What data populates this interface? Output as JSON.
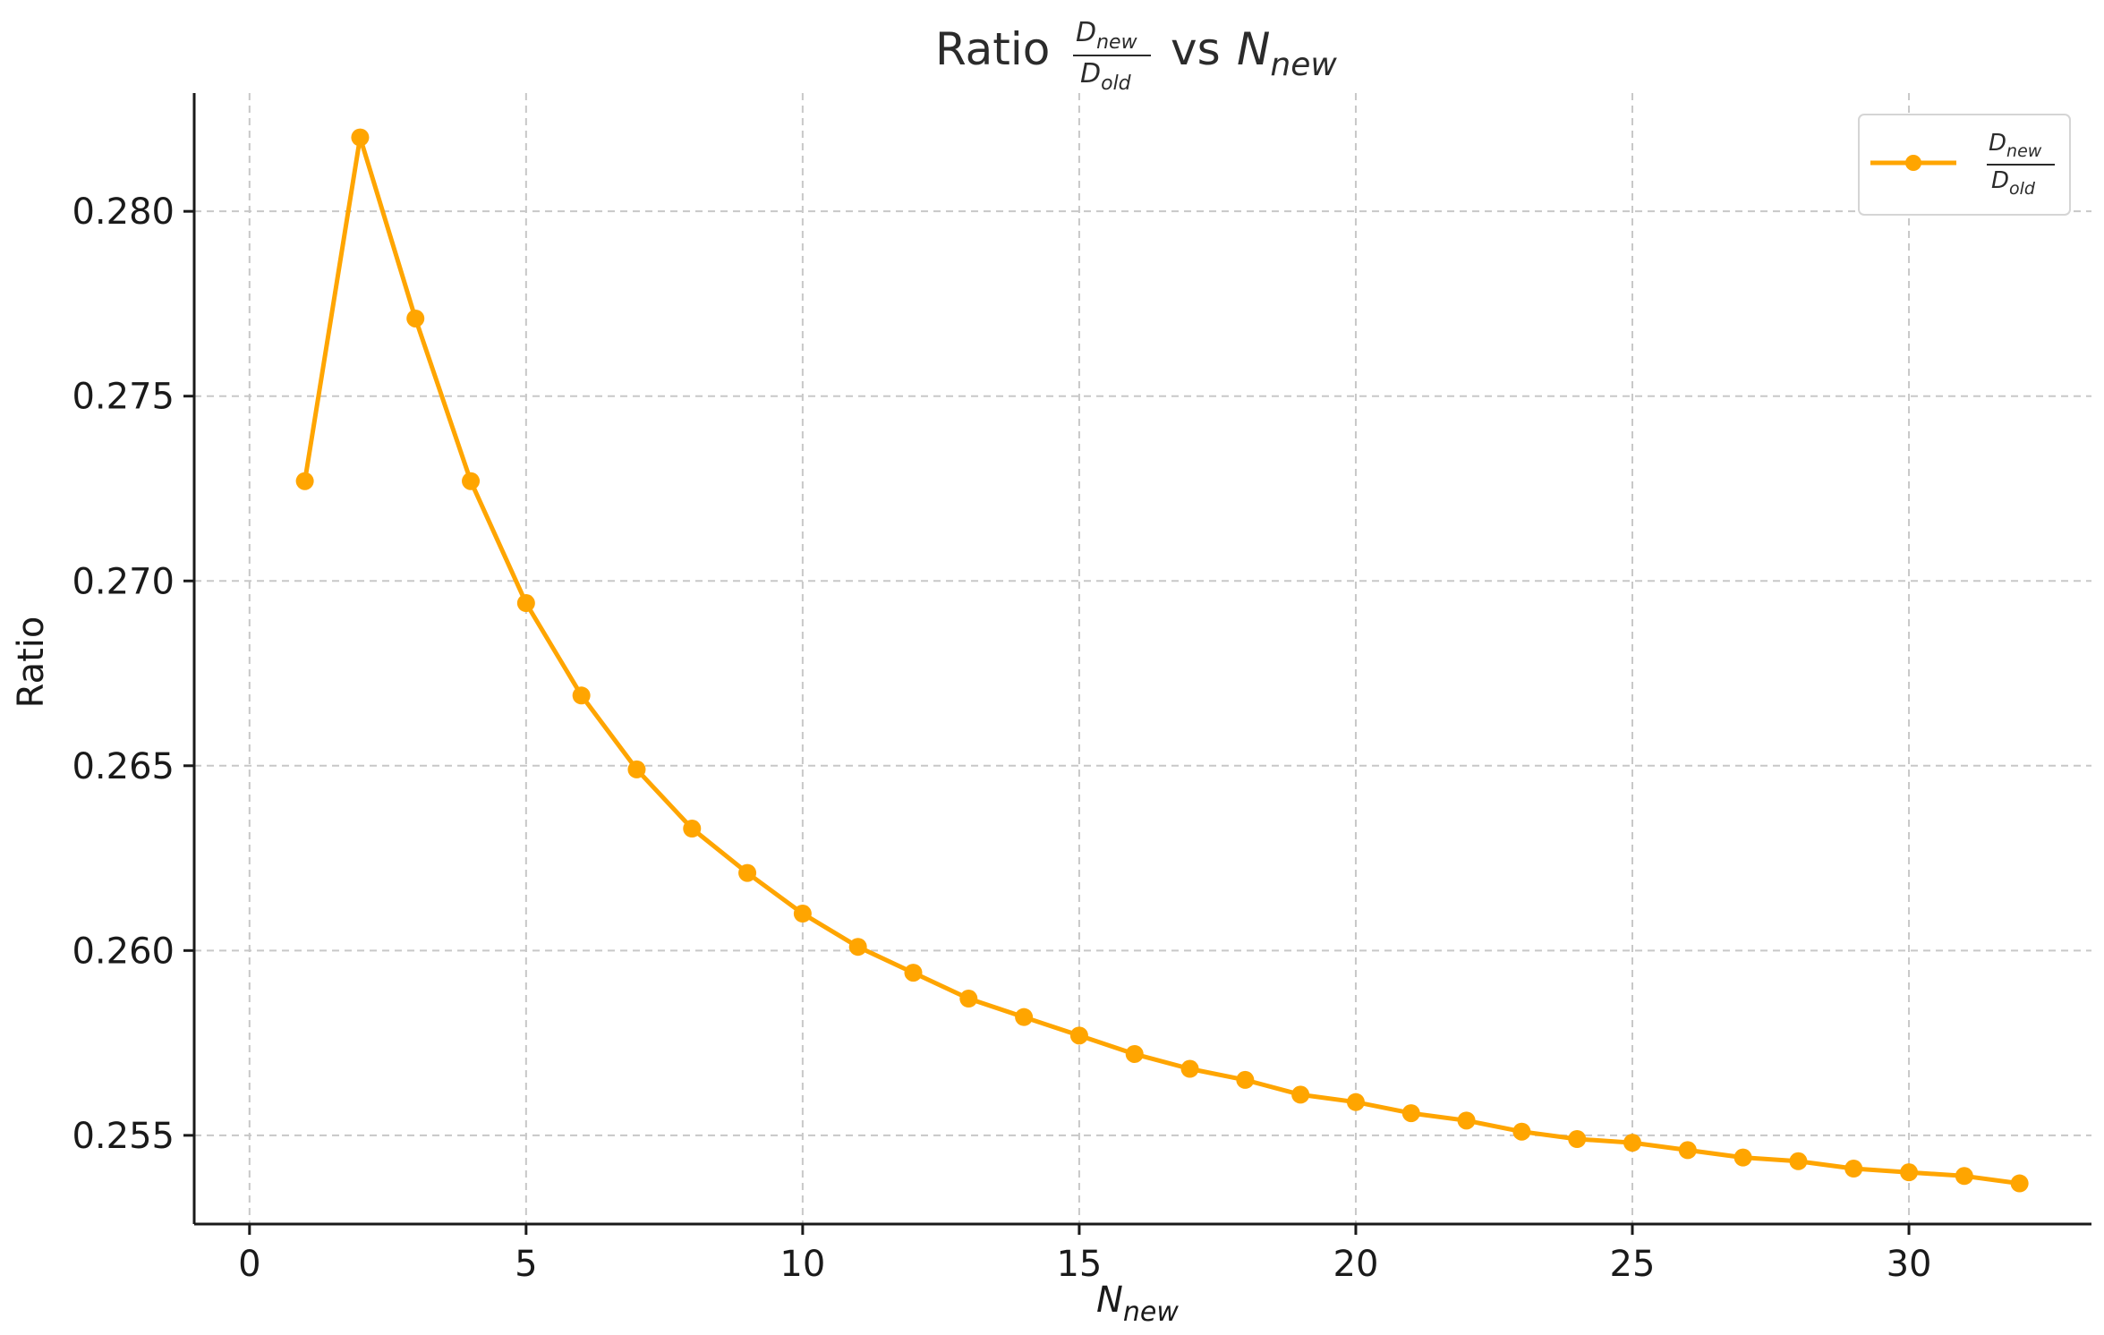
{
  "chart_data": {
    "type": "line",
    "title": {
      "prefix": "Ratio",
      "fraction_numerator": "D",
      "fraction_numerator_sub": "new",
      "fraction_denominator": "D",
      "fraction_denominator_sub": "old",
      "middle": "vs",
      "var": "N",
      "var_sub": "new"
    },
    "xlabel": {
      "main": "N",
      "sub": "new"
    },
    "ylabel": "Ratio",
    "xlim": [
      -1,
      33.3
    ],
    "ylim": [
      0.2526,
      0.2832
    ],
    "xticks": [
      0,
      5,
      10,
      15,
      20,
      25,
      30
    ],
    "xtick_labels": [
      "0",
      "5",
      "10",
      "15",
      "20",
      "25",
      "30"
    ],
    "yticks": [
      0.255,
      0.26,
      0.265,
      0.27,
      0.275,
      0.28
    ],
    "ytick_labels": [
      "0.255",
      "0.260",
      "0.265",
      "0.270",
      "0.275",
      "0.280"
    ],
    "grid": true,
    "legend_position": "top-right",
    "series": [
      {
        "legend": {
          "num": "D",
          "num_sub": "new",
          "den": "D",
          "den_sub": "old"
        },
        "color": "#FFA500",
        "marker": "circle",
        "x": [
          1,
          2,
          3,
          4,
          5,
          6,
          7,
          8,
          9,
          10,
          11,
          12,
          13,
          14,
          15,
          16,
          17,
          18,
          19,
          20,
          21,
          22,
          23,
          24,
          25,
          26,
          27,
          28,
          29,
          30,
          31,
          32
        ],
        "y": [
          0.2727,
          0.282,
          0.2771,
          0.2727,
          0.2694,
          0.2669,
          0.2649,
          0.2633,
          0.2621,
          0.261,
          0.2601,
          0.2594,
          0.2587,
          0.2582,
          0.2577,
          0.2572,
          0.2568,
          0.2565,
          0.2561,
          0.2559,
          0.2556,
          0.2554,
          0.2551,
          0.2549,
          0.2548,
          0.2546,
          0.2544,
          0.2543,
          0.2541,
          0.254,
          0.2539,
          0.2537
        ]
      }
    ]
  }
}
